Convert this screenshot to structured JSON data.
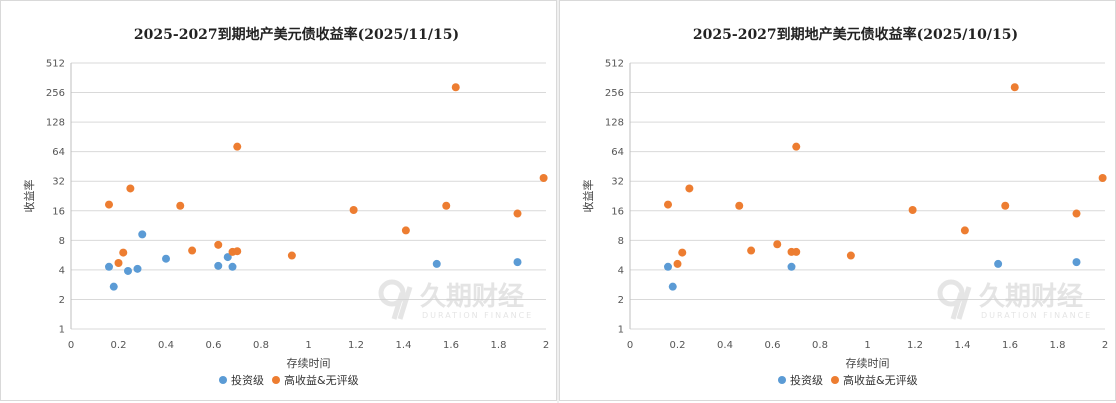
{
  "colors": {
    "investment_grade": "#5b9bd5",
    "high_yield": "#ed7d31",
    "grid": "#d9d9d9"
  },
  "watermark": {
    "name": "久期财经",
    "subtitle": "DURATION FINANCE"
  },
  "chart_data": [
    {
      "type": "scatter",
      "title": "2025-2027到期地产美元债收益率(2025/11/15)",
      "xlabel": "存续时间",
      "ylabel": "收益率",
      "xlim": [
        0,
        2
      ],
      "xticks": [
        "0",
        "0.2",
        "0.4",
        "0.6",
        "0.8",
        "1",
        "1.2",
        "1.4",
        "1.6",
        "1.8",
        "2"
      ],
      "ylim": [
        1,
        512
      ],
      "yscale": "log2",
      "yticks": [
        "1",
        "2",
        "4",
        "8",
        "16",
        "32",
        "64",
        "128",
        "256",
        "512"
      ],
      "legend_position": "bottom",
      "series": [
        {
          "name": "投资级",
          "color": "#5b9bd5",
          "points": [
            [
              0.16,
              4.3
            ],
            [
              0.18,
              2.7
            ],
            [
              0.24,
              3.9
            ],
            [
              0.28,
              4.1
            ],
            [
              0.3,
              9.2
            ],
            [
              0.4,
              5.2
            ],
            [
              0.62,
              4.4
            ],
            [
              0.66,
              5.4
            ],
            [
              0.68,
              4.3
            ],
            [
              1.54,
              4.6
            ],
            [
              1.88,
              4.8
            ]
          ]
        },
        {
          "name": "高收益&无评级",
          "color": "#ed7d31",
          "points": [
            [
              0.16,
              18.5
            ],
            [
              0.2,
              4.7
            ],
            [
              0.22,
              6.0
            ],
            [
              0.25,
              27.0
            ],
            [
              0.46,
              18.0
            ],
            [
              0.51,
              6.3
            ],
            [
              0.62,
              7.2
            ],
            [
              0.68,
              6.1
            ],
            [
              0.7,
              6.2
            ],
            [
              0.7,
              72.0
            ],
            [
              0.93,
              5.6
            ],
            [
              1.19,
              16.3
            ],
            [
              1.41,
              10.1
            ],
            [
              1.58,
              18.0
            ],
            [
              1.62,
              290.0
            ],
            [
              1.88,
              15.0
            ],
            [
              1.99,
              34.5
            ]
          ]
        }
      ]
    },
    {
      "type": "scatter",
      "title": "2025-2027到期地产美元债收益率(2025/10/15)",
      "xlabel": "存续时间",
      "ylabel": "收益率",
      "xlim": [
        0,
        2
      ],
      "xticks": [
        "0",
        "0.2",
        "0.4",
        "0.6",
        "0.8",
        "1",
        "1.2",
        "1.4",
        "1.6",
        "1.8",
        "2"
      ],
      "ylim": [
        1,
        512
      ],
      "yscale": "log2",
      "yticks": [
        "1",
        "2",
        "4",
        "8",
        "16",
        "32",
        "64",
        "128",
        "256",
        "512"
      ],
      "legend_position": "bottom",
      "series": [
        {
          "name": "投资级",
          "color": "#5b9bd5",
          "points": [
            [
              0.16,
              4.3
            ],
            [
              0.18,
              2.7
            ],
            [
              0.68,
              4.3
            ],
            [
              1.55,
              4.6
            ],
            [
              1.88,
              4.8
            ]
          ]
        },
        {
          "name": "高收益&无评级",
          "color": "#ed7d31",
          "points": [
            [
              0.16,
              18.5
            ],
            [
              0.2,
              4.6
            ],
            [
              0.22,
              6.0
            ],
            [
              0.25,
              27.0
            ],
            [
              0.46,
              18.0
            ],
            [
              0.51,
              6.3
            ],
            [
              0.62,
              7.3
            ],
            [
              0.68,
              6.1
            ],
            [
              0.7,
              6.1
            ],
            [
              0.7,
              72.0
            ],
            [
              0.93,
              5.6
            ],
            [
              1.19,
              16.3
            ],
            [
              1.41,
              10.1
            ],
            [
              1.58,
              18.0
            ],
            [
              1.62,
              290.0
            ],
            [
              1.88,
              15.0
            ],
            [
              1.99,
              34.5
            ]
          ]
        }
      ]
    }
  ]
}
